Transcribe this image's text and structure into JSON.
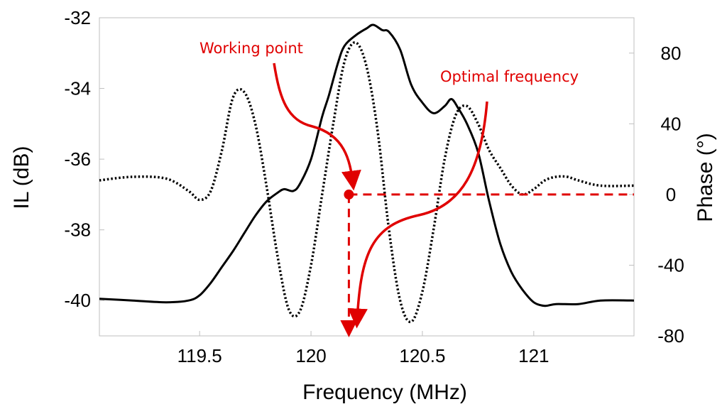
{
  "chart_data": {
    "type": "line",
    "xlabel": "Frequency (MHz)",
    "ylabel_left": "IL (dB)",
    "ylabel_right": "Phase (°)",
    "xlim": [
      119.05,
      121.45
    ],
    "ylim_left": [
      -41,
      -32
    ],
    "ylim_right": [
      -80,
      100
    ],
    "x_ticks": [
      119.5,
      120,
      120.5,
      121
    ],
    "x_tick_labels": [
      "119.5",
      "120",
      "120.5",
      "121"
    ],
    "y_left_ticks": [
      -32,
      -34,
      -36,
      -38,
      -40
    ],
    "y_left_tick_labels": [
      "-32",
      "-34",
      "-36",
      "-38",
      "-40"
    ],
    "y_right_ticks": [
      80,
      40,
      0,
      -40,
      -80
    ],
    "y_right_tick_labels": [
      "80",
      "40",
      "0",
      "-40",
      "-80"
    ],
    "grid": false,
    "colors": {
      "il": "#000000",
      "phase": "#000000",
      "annotation": "#e00000"
    },
    "series": [
      {
        "axis": "left",
        "style": "solid",
        "x": [
          119.05,
          119.2,
          119.35,
          119.45,
          119.5,
          119.55,
          119.6,
          119.65,
          119.7,
          119.75,
          119.8,
          119.85,
          119.88,
          119.92,
          119.95,
          120.0,
          120.05,
          120.08,
          120.12,
          120.15,
          120.2,
          120.25,
          120.28,
          120.32,
          120.35,
          120.4,
          120.45,
          120.5,
          120.55,
          120.6,
          120.63,
          120.66,
          120.7,
          120.75,
          120.8,
          120.85,
          120.9,
          120.95,
          121.0,
          121.05,
          121.1,
          121.2,
          121.3,
          121.45
        ],
        "values": [
          -39.95,
          -40.0,
          -40.05,
          -40.0,
          -39.85,
          -39.5,
          -39.05,
          -38.6,
          -38.1,
          -37.6,
          -37.2,
          -36.95,
          -36.85,
          -36.9,
          -36.7,
          -36.0,
          -34.8,
          -34.2,
          -33.3,
          -32.8,
          -32.5,
          -32.3,
          -32.2,
          -32.35,
          -32.4,
          -32.9,
          -33.9,
          -34.4,
          -34.7,
          -34.5,
          -34.3,
          -34.55,
          -35.0,
          -35.8,
          -37.2,
          -38.4,
          -39.2,
          -39.7,
          -40.05,
          -40.15,
          -40.1,
          -40.1,
          -40.0,
          -40.0
        ]
      },
      {
        "axis": "right",
        "style": "dotted",
        "x": [
          119.05,
          119.2,
          119.35,
          119.45,
          119.5,
          119.55,
          119.6,
          119.65,
          119.7,
          119.75,
          119.8,
          119.85,
          119.9,
          119.95,
          120.0,
          120.05,
          120.1,
          120.15,
          120.2,
          120.25,
          120.3,
          120.35,
          120.4,
          120.45,
          120.5,
          120.55,
          120.6,
          120.65,
          120.7,
          120.75,
          120.8,
          120.85,
          120.9,
          120.95,
          121.0,
          121.05,
          121.1,
          121.15,
          121.2,
          121.3,
          121.45
        ],
        "values": [
          8,
          10,
          9,
          2,
          -3,
          2,
          25,
          55,
          58,
          40,
          5,
          -35,
          -65,
          -66,
          -40,
          0,
          40,
          75,
          86,
          72,
          35,
          -20,
          -60,
          -72,
          -55,
          -20,
          20,
          45,
          50,
          40,
          25,
          15,
          5,
          0,
          3,
          8,
          10,
          10,
          8,
          5,
          5
        ]
      }
    ],
    "annotations": [
      {
        "text": "Working point",
        "x": 120.17,
        "y_phase": 0,
        "marker": "dot"
      },
      {
        "text": "Optimal frequency",
        "x": 120.17
      }
    ]
  }
}
